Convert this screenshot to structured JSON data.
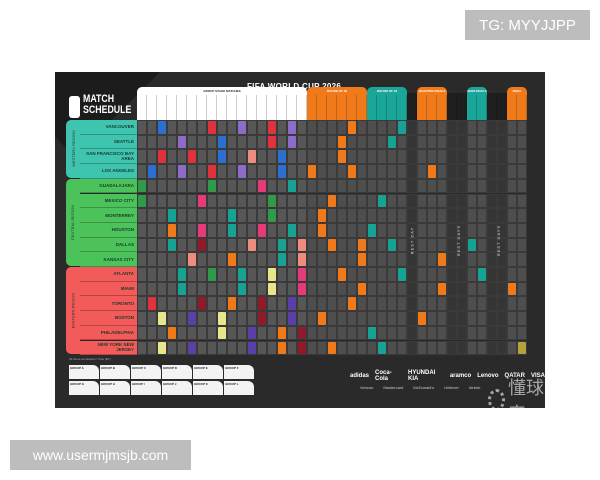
{
  "watermarks": {
    "top": "TG: MYYJJPP",
    "bottom": "www.usermjmsjb.com",
    "brand": "懂球帝"
  },
  "poster": {
    "title": "FIFA WORLD CUP 2026",
    "logo_line1": "MATCH",
    "logo_line2": "SCHEDULE",
    "footnote": "All times are Eastern Time (ET)"
  },
  "stages": [
    {
      "label": "GROUP STAGE MATCHES",
      "start": 0,
      "days": 17,
      "color": "#ffffff"
    },
    {
      "label": "ROUND OF 32",
      "start": 17,
      "days": 6,
      "color": "#f07a1a"
    },
    {
      "label": "ROUND OF 16",
      "start": 23,
      "days": 4,
      "color": "#1aa79a"
    },
    {
      "label": "",
      "start": 27,
      "days": 1,
      "color": "#1e1e1e"
    },
    {
      "label": "QUARTER-FINALS",
      "start": 28,
      "days": 3,
      "color": "#f07a1a"
    },
    {
      "label": "",
      "start": 31,
      "days": 2,
      "color": "#1e1e1e"
    },
    {
      "label": "SEMI-FINALS",
      "start": 33,
      "days": 2,
      "color": "#1aa79a"
    },
    {
      "label": "",
      "start": 35,
      "days": 2,
      "color": "#1e1e1e"
    },
    {
      "label": "FINAL",
      "start": 37,
      "days": 2,
      "color": "#f07a1a"
    }
  ],
  "rest_labels": [
    "REST DAY",
    "REST DAYS",
    "REST DAYS"
  ],
  "regions": [
    {
      "label": "WESTERN REGION",
      "color": "#3fc4b0",
      "cities": [
        "VANCOUVER",
        "SEATTLE",
        "SAN FRANCISCO BAY AREA",
        "LOS ANGELES"
      ]
    },
    {
      "label": "CENTRAL REGION",
      "color": "#4cc25a",
      "cities": [
        "GUADALAJARA",
        "MEXICO CITY",
        "MONTERREY",
        "HOUSTON",
        "DALLAS",
        "KANSAS CITY"
      ]
    },
    {
      "label": "EASTERN REGION",
      "color": "#f35a5a",
      "cities": [
        "ATLANTA",
        "MIAMI",
        "TORONTO",
        "BOSTON",
        "PHILADELPHIA",
        "NEW YORK NEW JERSEY"
      ]
    }
  ],
  "colors": {
    "blue": "#2b6fd1",
    "red": "#e0323c",
    "purple": "#8d6bc9",
    "salmon": "#ee8c80",
    "green": "#2f9a4a",
    "pink": "#e63a7a",
    "teal": "#16a394",
    "orange": "#f07a1a",
    "darkred": "#8e1a2a",
    "yellow": "#e8e58a",
    "gold": "#b6a23a",
    "indigo": "#5a3fa8"
  },
  "matches": [
    [
      0,
      2,
      "blue"
    ],
    [
      0,
      7,
      "red"
    ],
    [
      0,
      10,
      "purple"
    ],
    [
      0,
      13,
      "red"
    ],
    [
      0,
      15,
      "purple"
    ],
    [
      0,
      21,
      "orange"
    ],
    [
      0,
      26,
      "teal"
    ],
    [
      1,
      4,
      "purple"
    ],
    [
      1,
      8,
      "blue"
    ],
    [
      1,
      13,
      "red"
    ],
    [
      1,
      15,
      "purple"
    ],
    [
      1,
      20,
      "orange"
    ],
    [
      1,
      25,
      "teal"
    ],
    [
      2,
      2,
      "red"
    ],
    [
      2,
      5,
      "red"
    ],
    [
      2,
      8,
      "blue"
    ],
    [
      2,
      11,
      "salmon"
    ],
    [
      2,
      14,
      "blue"
    ],
    [
      2,
      20,
      "orange"
    ],
    [
      3,
      1,
      "blue"
    ],
    [
      3,
      4,
      "purple"
    ],
    [
      3,
      7,
      "red"
    ],
    [
      3,
      10,
      "purple"
    ],
    [
      3,
      14,
      "blue"
    ],
    [
      3,
      17,
      "orange"
    ],
    [
      3,
      21,
      "orange"
    ],
    [
      3,
      29,
      "orange"
    ],
    [
      4,
      0,
      "green"
    ],
    [
      4,
      7,
      "green"
    ],
    [
      4,
      12,
      "pink"
    ],
    [
      4,
      15,
      "teal"
    ],
    [
      5,
      0,
      "green"
    ],
    [
      5,
      6,
      "pink"
    ],
    [
      5,
      13,
      "green"
    ],
    [
      5,
      19,
      "orange"
    ],
    [
      5,
      24,
      "teal"
    ],
    [
      6,
      3,
      "teal"
    ],
    [
      6,
      9,
      "teal"
    ],
    [
      6,
      13,
      "green"
    ],
    [
      6,
      18,
      "orange"
    ],
    [
      7,
      3,
      "orange"
    ],
    [
      7,
      6,
      "pink"
    ],
    [
      7,
      9,
      "teal"
    ],
    [
      7,
      12,
      "pink"
    ],
    [
      7,
      15,
      "teal"
    ],
    [
      7,
      18,
      "orange"
    ],
    [
      7,
      23,
      "teal"
    ],
    [
      8,
      3,
      "teal"
    ],
    [
      8,
      6,
      "darkred"
    ],
    [
      8,
      11,
      "salmon"
    ],
    [
      8,
      14,
      "teal"
    ],
    [
      8,
      16,
      "salmon"
    ],
    [
      8,
      19,
      "orange"
    ],
    [
      8,
      22,
      "orange"
    ],
    [
      8,
      25,
      "teal"
    ],
    [
      8,
      33,
      "teal"
    ],
    [
      9,
      5,
      "salmon"
    ],
    [
      9,
      9,
      "orange"
    ],
    [
      9,
      14,
      "teal"
    ],
    [
      9,
      16,
      "salmon"
    ],
    [
      9,
      22,
      "orange"
    ],
    [
      9,
      30,
      "orange"
    ],
    [
      10,
      4,
      "teal"
    ],
    [
      10,
      7,
      "green"
    ],
    [
      10,
      10,
      "teal"
    ],
    [
      10,
      13,
      "yellow"
    ],
    [
      10,
      16,
      "pink"
    ],
    [
      10,
      20,
      "orange"
    ],
    [
      10,
      26,
      "teal"
    ],
    [
      10,
      34,
      "teal"
    ],
    [
      11,
      4,
      "teal"
    ],
    [
      11,
      10,
      "teal"
    ],
    [
      11,
      13,
      "yellow"
    ],
    [
      11,
      16,
      "pink"
    ],
    [
      11,
      22,
      "orange"
    ],
    [
      11,
      30,
      "orange"
    ],
    [
      11,
      37,
      "orange"
    ],
    [
      12,
      1,
      "red"
    ],
    [
      12,
      6,
      "darkred"
    ],
    [
      12,
      9,
      "orange"
    ],
    [
      12,
      12,
      "darkred"
    ],
    [
      12,
      15,
      "indigo"
    ],
    [
      12,
      21,
      "orange"
    ],
    [
      13,
      2,
      "yellow"
    ],
    [
      13,
      5,
      "indigo"
    ],
    [
      13,
      8,
      "yellow"
    ],
    [
      13,
      12,
      "darkred"
    ],
    [
      13,
      15,
      "indigo"
    ],
    [
      13,
      18,
      "orange"
    ],
    [
      13,
      28,
      "orange"
    ],
    [
      14,
      3,
      "orange"
    ],
    [
      14,
      8,
      "yellow"
    ],
    [
      14,
      11,
      "indigo"
    ],
    [
      14,
      14,
      "orange"
    ],
    [
      14,
      16,
      "darkred"
    ],
    [
      14,
      23,
      "teal"
    ],
    [
      15,
      2,
      "yellow"
    ],
    [
      15,
      5,
      "indigo"
    ],
    [
      15,
      11,
      "indigo"
    ],
    [
      15,
      14,
      "orange"
    ],
    [
      15,
      16,
      "darkred"
    ],
    [
      15,
      19,
      "orange"
    ],
    [
      15,
      24,
      "teal"
    ],
    [
      15,
      38,
      "gold"
    ]
  ],
  "groups": [
    "GROUP A",
    "GROUP B",
    "GROUP C",
    "GROUP D",
    "GROUP E",
    "GROUP F",
    "GROUP G",
    "GROUP H",
    "GROUP I",
    "GROUP J",
    "GROUP K",
    "GROUP L"
  ],
  "sponsors": [
    "adidas",
    "Coca-Cola",
    "HYUNDAI KIA",
    "aramco",
    "Lenovo",
    "QATAR",
    "VISA"
  ],
  "sponsors_row2": [
    "Verizon",
    "Mastercard",
    "McDonald's",
    "Unilever",
    "Airbnb"
  ]
}
